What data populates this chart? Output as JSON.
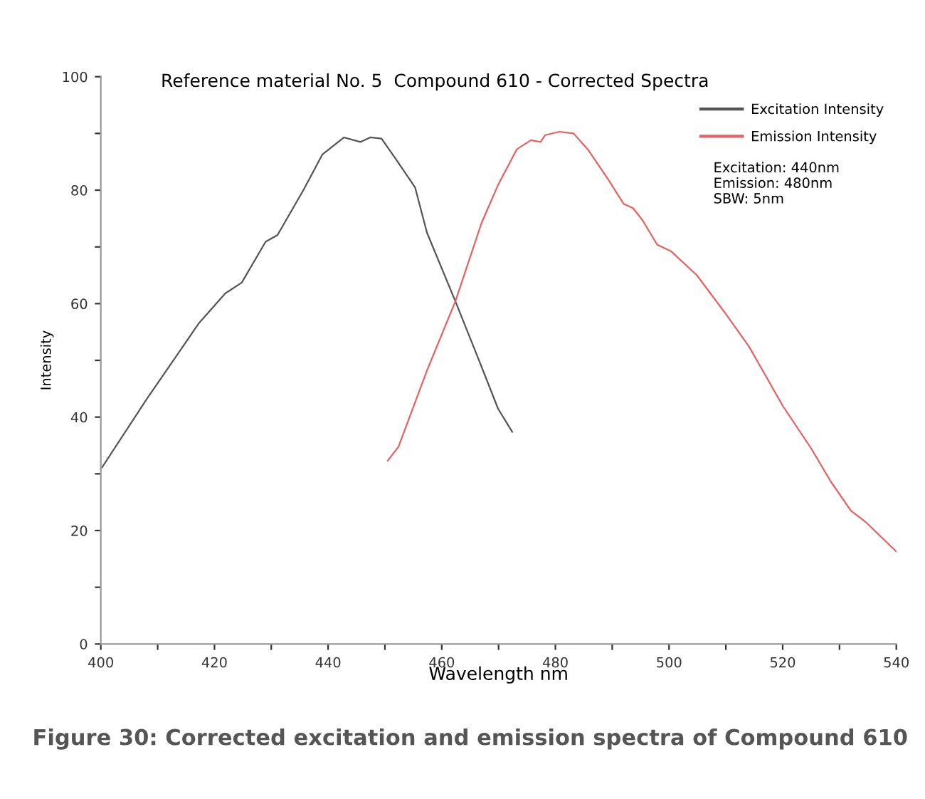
{
  "chart_data": {
    "type": "line",
    "title": "Reference material No. 5  Compound 610 - Corrected Spectra",
    "xlabel": "Wavelength nm",
    "ylabel": "Intensity",
    "series": [
      {
        "name": "Excitation Intensity",
        "color": "#555555",
        "x": [
          400.2,
          408.1,
          417.3,
          421.9,
          424.8,
          429.0,
          431.1,
          435.7,
          439.0,
          442.8,
          445.7,
          447.4,
          449.4,
          451.9,
          455.3,
          457.4,
          462.4,
          466.6,
          469.9,
          472.4
        ],
        "values": [
          31.1,
          43.2,
          56.6,
          61.8,
          63.7,
          70.9,
          72.1,
          80.1,
          86.3,
          89.3,
          88.5,
          89.3,
          89.1,
          85.5,
          80.5,
          72.5,
          60.4,
          49.9,
          41.5,
          37.4
        ]
      },
      {
        "name": "Emission Intensity",
        "color": "#e8605f",
        "x": [
          450.5,
          452.4,
          457.4,
          462.4,
          467.0,
          469.9,
          473.2,
          475.7,
          477.4,
          478.2,
          480.7,
          483.2,
          485.7,
          489.1,
          492.0,
          493.7,
          495.4,
          497.9,
          500.4,
          504.9,
          509.9,
          514.1,
          520.0,
          525.0,
          528.5,
          532.0,
          534.5,
          540.0
        ],
        "values": [
          32.3,
          34.8,
          48.2,
          60.4,
          74.2,
          80.9,
          87.2,
          88.8,
          88.5,
          89.7,
          90.3,
          90.0,
          87.2,
          82.2,
          77.6,
          76.8,
          74.6,
          70.4,
          69.2,
          65.0,
          58.3,
          52.4,
          42.0,
          34.5,
          28.6,
          23.5,
          21.6,
          16.3
        ]
      }
    ],
    "xlim": [
      400,
      540
    ],
    "ylim": [
      0,
      100
    ],
    "xticks": [
      400,
      {
        "value": 410,
        "label": null
      },
      420,
      {
        "value": 430,
        "label": null
      },
      440,
      {
        "value": 450,
        "label": null
      },
      460,
      {
        "value": 470,
        "label": null
      },
      480,
      {
        "value": 490,
        "label": null
      },
      500,
      {
        "value": 510,
        "label": null
      },
      520,
      {
        "value": 530,
        "label": null
      },
      540
    ],
    "yticks": [
      0,
      {
        "value": 10,
        "label": null
      },
      20,
      {
        "value": 30,
        "label": null
      },
      40,
      {
        "value": 50,
        "label": null
      },
      60,
      {
        "value": 70,
        "label": null
      },
      80,
      {
        "value": 90,
        "label": null
      },
      100
    ],
    "legend": "top right",
    "grid": false,
    "marker": "none",
    "line_style": "solid",
    "annotations": [
      "Excitation: 440nm\nEmission: 480nm\nSBW: 5nm",
      "Figure 30: Corrected excitation and emission spectra of Compound 610"
    ]
  }
}
